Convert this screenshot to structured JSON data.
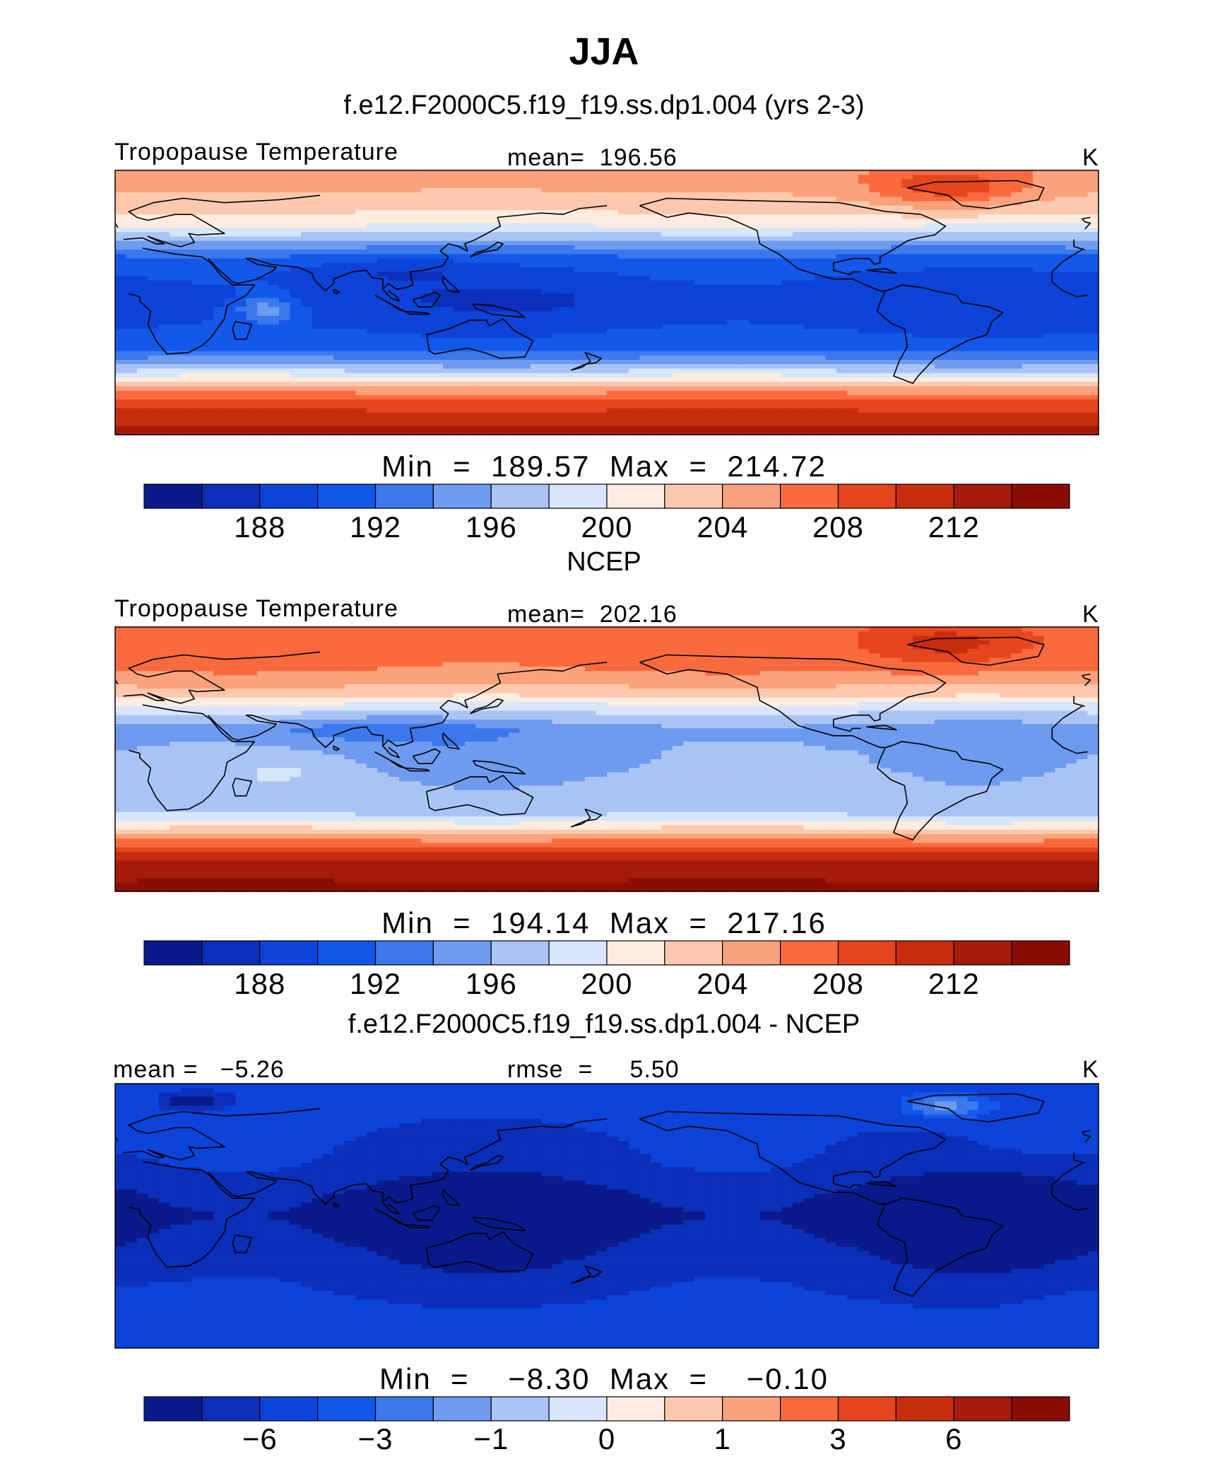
{
  "title": "JJA",
  "chart_data": [
    {
      "type": "heatmap",
      "title": "f.e12.F2000C5.f19_f19.ss.dp1.004 (yrs 2-3)",
      "left_label": "Tropopause Temperature",
      "center_label": "mean=  196.56",
      "units": "K",
      "stats": "Min  =  189.57  Max  =  214.72",
      "x_range": [
        0,
        360
      ],
      "y_range": [
        -90,
        90
      ],
      "colorbar": {
        "levels": [
          186,
          188,
          190,
          192,
          194,
          196,
          198,
          200,
          202,
          204,
          206,
          208,
          210,
          212,
          214,
          216
        ],
        "tick_labels": [
          "188",
          "192",
          "196",
          "200",
          "204",
          "208",
          "212"
        ],
        "tick_index": [
          1,
          3,
          5,
          7,
          9,
          11,
          13
        ]
      },
      "field": {
        "base": 194,
        "bands": [
          [
            -90,
            215
          ],
          [
            -68,
            211
          ],
          [
            -55,
            205
          ],
          [
            -45,
            199
          ],
          [
            -32,
            193.5
          ],
          [
            -15,
            191.5
          ],
          [
            5,
            191
          ],
          [
            20,
            192
          ],
          [
            32,
            194
          ],
          [
            42,
            198
          ],
          [
            55,
            203
          ],
          [
            75,
            206
          ],
          [
            90,
            207
          ]
        ],
        "blobs": [
          {
            "lon": 305,
            "lat": 78,
            "rx": 30,
            "ry": 15,
            "amp": 5
          },
          {
            "lon": 55,
            "lat": -5,
            "rx": 10,
            "ry": 10,
            "amp": 5
          },
          {
            "lon": 100,
            "lat": 22,
            "rx": 40,
            "ry": 10,
            "amp": -2
          },
          {
            "lon": 150,
            "lat": 0,
            "rx": 55,
            "ry": 12,
            "amp": -1
          }
        ]
      }
    },
    {
      "type": "heatmap",
      "title": "NCEP",
      "left_label": "Tropopause Temperature",
      "center_label": "mean=  202.16",
      "units": "K",
      "stats": "Min  =  194.14  Max  =  217.16",
      "x_range": [
        0,
        360
      ],
      "y_range": [
        -90,
        90
      ],
      "colorbar": {
        "levels": [
          186,
          188,
          190,
          192,
          194,
          196,
          198,
          200,
          202,
          204,
          206,
          208,
          210,
          212,
          214,
          216
        ],
        "tick_labels": [
          "188",
          "192",
          "196",
          "200",
          "204",
          "208",
          "212"
        ],
        "tick_index": [
          1,
          3,
          5,
          7,
          9,
          11,
          13
        ]
      },
      "field": {
        "base": 199,
        "bands": [
          [
            -90,
            217
          ],
          [
            -68,
            214
          ],
          [
            -55,
            208
          ],
          [
            -45,
            203
          ],
          [
            -35,
            199
          ],
          [
            -15,
            198.5
          ],
          [
            5,
            198
          ],
          [
            20,
            197
          ],
          [
            35,
            201
          ],
          [
            45,
            205
          ],
          [
            60,
            208
          ],
          [
            80,
            209
          ],
          [
            90,
            209
          ]
        ],
        "blobs": [
          {
            "lon": 95,
            "lat": 20,
            "rx": 40,
            "ry": 10,
            "amp": -2.5
          },
          {
            "lon": 150,
            "lat": 0,
            "rx": 45,
            "ry": 12,
            "amp": -1.5
          },
          {
            "lon": 60,
            "lat": -10,
            "rx": 10,
            "ry": 5,
            "amp": 2.5
          },
          {
            "lon": 305,
            "lat": 78,
            "rx": 30,
            "ry": 15,
            "amp": 4
          }
        ]
      }
    },
    {
      "type": "heatmap",
      "title": "f.e12.F2000C5.f19_f19.ss.dp1.004 - NCEP",
      "left_label": "mean =   −5.26",
      "center_label": "rmse  =     5.50",
      "units": "K",
      "stats": "Min  =    −8.30  Max  =    −0.10",
      "x_range": [
        0,
        360
      ],
      "y_range": [
        -90,
        90
      ],
      "colorbar": {
        "levels": [
          -8,
          -6,
          -5,
          -3,
          -2,
          -1,
          -0.5,
          0,
          0.5,
          1,
          2,
          3,
          5,
          6,
          8,
          9
        ],
        "tick_labels": [
          "−6",
          "−3",
          "−1",
          "0",
          "1",
          "3",
          "6"
        ],
        "tick_index": [
          1,
          3,
          5,
          7,
          9,
          11,
          13
        ]
      },
      "field": {
        "base": -5.2,
        "bands": [
          [
            -90,
            -4.5
          ],
          [
            -70,
            -4.5
          ],
          [
            -50,
            -5.2
          ],
          [
            -30,
            -5.8
          ],
          [
            -15,
            -6.2
          ],
          [
            0,
            -6.6
          ],
          [
            15,
            -6.2
          ],
          [
            35,
            -5.3
          ],
          [
            55,
            -5.0
          ],
          [
            75,
            -4.6
          ],
          [
            90,
            -4.6
          ]
        ],
        "blobs": [
          {
            "lon": 305,
            "lat": 75,
            "rx": 20,
            "ry": 10,
            "amp": 4
          },
          {
            "lon": 340,
            "lat": 55,
            "rx": 25,
            "ry": 12,
            "amp": 1.5
          },
          {
            "lon": 30,
            "lat": 78,
            "rx": 12,
            "ry": 6,
            "amp": -2.5
          },
          {
            "lon": 10,
            "lat": -60,
            "rx": 30,
            "ry": 10,
            "amp": 0.8
          }
        ]
      }
    }
  ],
  "palette": [
    "#0a1a8c",
    "#0b2fb8",
    "#0c43d9",
    "#1458eb",
    "#3a78ec",
    "#6e9af0",
    "#a9c4f4",
    "#d7e6fb",
    "#feece0",
    "#fdc9ae",
    "#fba27c",
    "#f96b3e",
    "#e6461c",
    "#c72d0f",
    "#a51a08",
    "#8a0d04"
  ]
}
